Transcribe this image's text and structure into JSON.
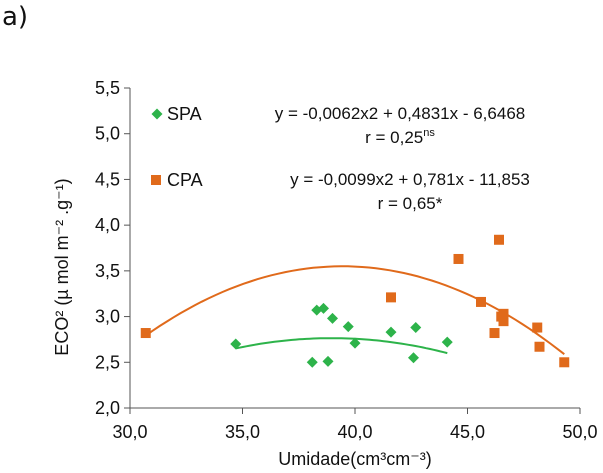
{
  "panel_label": "a)",
  "chart_data": {
    "type": "scatter",
    "xlabel": "Umidade(cm³cm⁻³)",
    "ylabel": "ECO² (µ mol m⁻² .g⁻¹)",
    "xlim": [
      30.0,
      50.0
    ],
    "ylim": [
      2.0,
      5.5
    ],
    "xticks": [
      "30,0",
      "35,0",
      "40,0",
      "45,0",
      "50,0"
    ],
    "yticks": [
      "2,0",
      "2,5",
      "3,0",
      "3,5",
      "4,0",
      "4,5",
      "5,0",
      "5,5"
    ],
    "series": [
      {
        "name": "SPA",
        "color": "#2db34a",
        "marker": "diamond",
        "points": [
          [
            34.7,
            2.7
          ],
          [
            38.1,
            2.5
          ],
          [
            38.3,
            3.07
          ],
          [
            38.6,
            3.09
          ],
          [
            38.8,
            2.51
          ],
          [
            39.0,
            2.98
          ],
          [
            39.7,
            2.89
          ],
          [
            40.0,
            2.71
          ],
          [
            41.6,
            2.83
          ],
          [
            42.6,
            2.55
          ],
          [
            42.7,
            2.88
          ],
          [
            44.1,
            2.72
          ]
        ],
        "trend": {
          "a": -0.0062,
          "b": 0.4831,
          "c": -6.6468,
          "x_range": [
            34.7,
            44.1
          ]
        },
        "equation": "y = -0,0062x2 + 0,4831x - 6,6468",
        "r": "r = 0,25",
        "r_sup": "ns"
      },
      {
        "name": "CPA",
        "color": "#e06a1b",
        "marker": "square",
        "points": [
          [
            30.7,
            2.82
          ],
          [
            41.6,
            3.21
          ],
          [
            44.6,
            3.63
          ],
          [
            45.6,
            3.16
          ],
          [
            46.2,
            2.82
          ],
          [
            46.4,
            3.84
          ],
          [
            46.5,
            3.0
          ],
          [
            46.6,
            2.95
          ],
          [
            46.6,
            3.03
          ],
          [
            48.1,
            2.88
          ],
          [
            48.2,
            2.67
          ],
          [
            49.3,
            2.5
          ]
        ],
        "trend": {
          "a": -0.0099,
          "b": 0.781,
          "c": -11.853,
          "x_range": [
            30.7,
            49.3
          ]
        },
        "equation": "y = -0,0099x2 + 0,781x - 11,853",
        "r": "r = 0,65*",
        "r_sup": ""
      }
    ]
  }
}
